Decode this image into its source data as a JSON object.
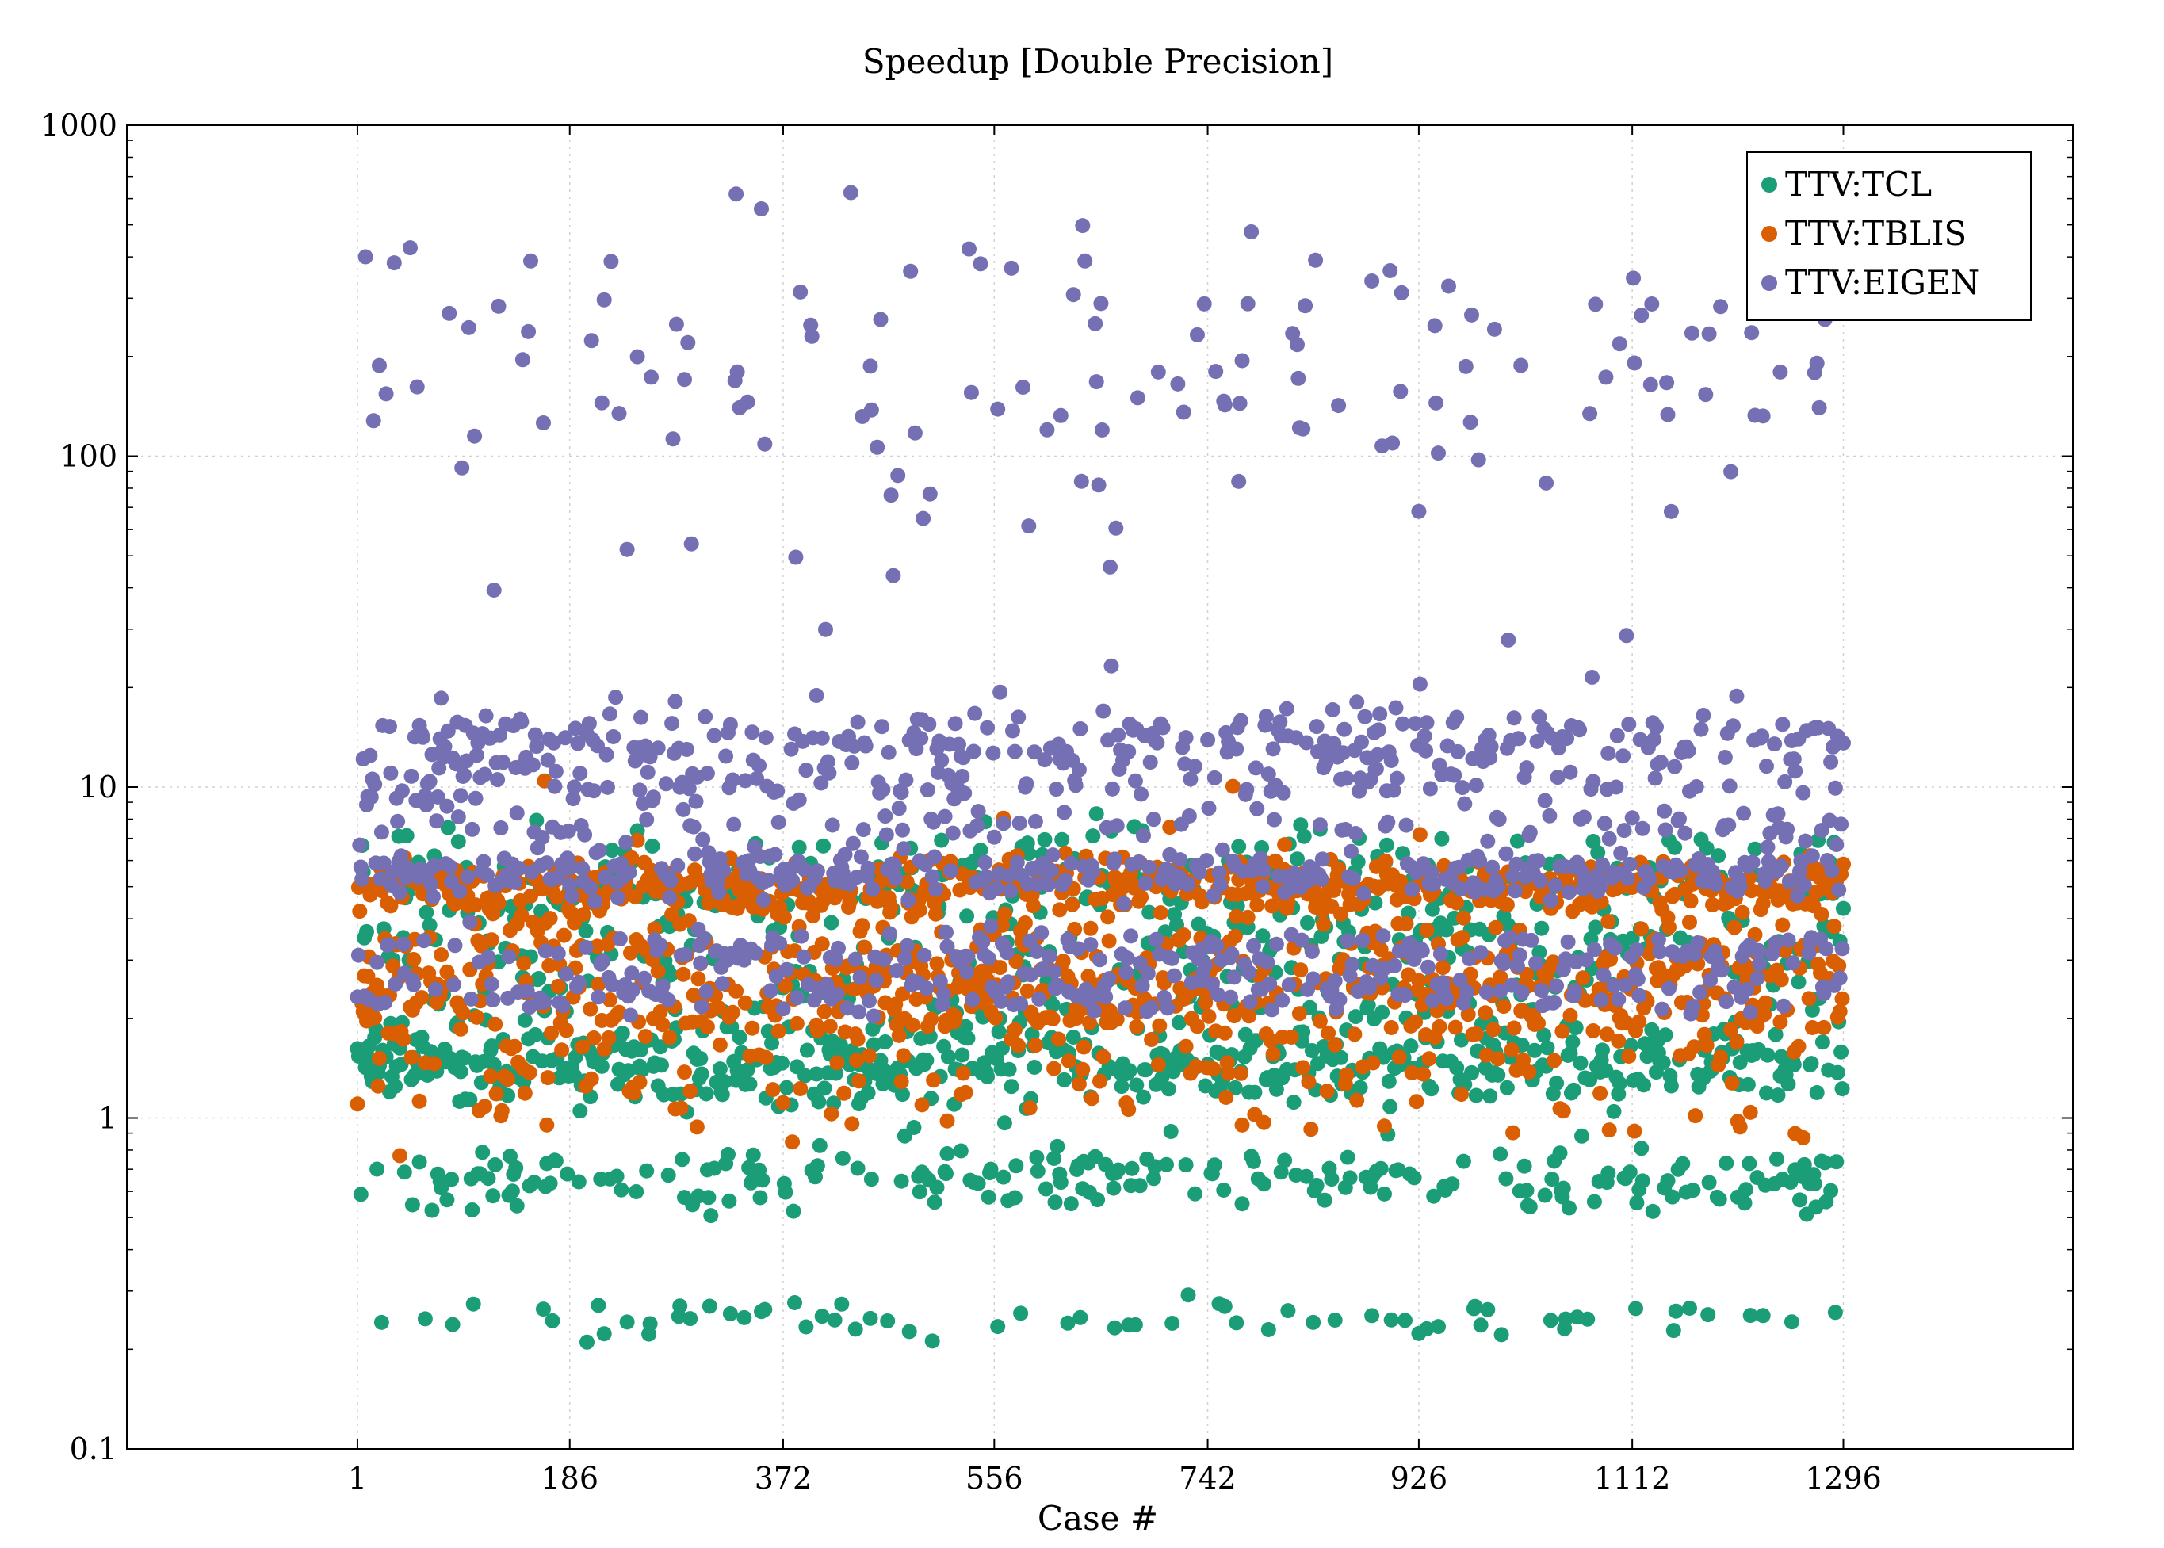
{
  "chart_data": {
    "type": "scatter",
    "title": "Speedup [Double Precision]",
    "xlabel": "Case #",
    "ylabel": "",
    "xlim": [
      -200,
      1496
    ],
    "ylim": [
      0.1,
      1000
    ],
    "yscale": "log",
    "grid": true,
    "legend_position": "top-right",
    "x_ticks": [
      1,
      186,
      372,
      556,
      742,
      926,
      1112,
      1296
    ],
    "x_tick_labels": [
      "1",
      "186",
      "372",
      "556",
      "742",
      "926",
      "1112",
      "1296"
    ],
    "y_ticks": [
      0.1,
      1,
      10,
      100,
      1000
    ],
    "y_tick_labels": [
      "0.1",
      "1",
      "10",
      "100",
      "1000"
    ],
    "n_cases": 1296,
    "series": [
      {
        "name": "TTV:TCL",
        "color": "#1b9e77",
        "bands": [
          {
            "center": 5.4,
            "spread": 0.15,
            "share": 0.14
          },
          {
            "center": 4.2,
            "spread": 0.18,
            "share": 0.1
          },
          {
            "center": 2.5,
            "spread": 0.2,
            "share": 0.16
          },
          {
            "center": 1.45,
            "spread": 0.1,
            "share": 0.34
          },
          {
            "center": 0.65,
            "spread": 0.08,
            "share": 0.16
          },
          {
            "center": 0.25,
            "spread": 0.06,
            "share": 0.05
          },
          {
            "center": 1.6,
            "spread": 0.45,
            "share": 0.05
          }
        ]
      },
      {
        "name": "TTV:TBLIS",
        "color": "#d95f02",
        "bands": [
          {
            "center": 5.0,
            "spread": 0.07,
            "share": 0.38
          },
          {
            "center": 3.1,
            "spread": 0.15,
            "share": 0.18
          },
          {
            "center": 2.3,
            "spread": 0.12,
            "share": 0.24
          },
          {
            "center": 1.4,
            "spread": 0.18,
            "share": 0.12
          },
          {
            "center": 3.5,
            "spread": 0.35,
            "share": 0.08
          }
        ]
      },
      {
        "name": "TTV:EIGEN",
        "color": "#7570b3",
        "bands": [
          {
            "center": 230,
            "spread": 0.3,
            "share": 0.07
          },
          {
            "center": 14.0,
            "spread": 0.08,
            "share": 0.17
          },
          {
            "center": 10.5,
            "spread": 0.08,
            "share": 0.12
          },
          {
            "center": 7.7,
            "spread": 0.05,
            "share": 0.07
          },
          {
            "center": 5.5,
            "spread": 0.06,
            "share": 0.25
          },
          {
            "center": 3.2,
            "spread": 0.06,
            "share": 0.14
          },
          {
            "center": 2.4,
            "spread": 0.06,
            "share": 0.14
          },
          {
            "center": 25,
            "spread": 0.2,
            "share": 0.01
          },
          {
            "center": 90,
            "spread": 0.3,
            "share": 0.03
          }
        ]
      }
    ]
  }
}
